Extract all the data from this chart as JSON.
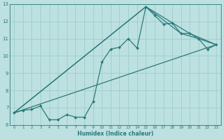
{
  "xlabel": "Humidex (Indice chaleur)",
  "xlim": [
    -0.5,
    23.5
  ],
  "ylim": [
    6,
    13
  ],
  "xticks": [
    0,
    1,
    2,
    3,
    4,
    5,
    6,
    7,
    8,
    9,
    10,
    11,
    12,
    13,
    14,
    15,
    16,
    17,
    18,
    19,
    20,
    21,
    22,
    23
  ],
  "yticks": [
    6,
    7,
    8,
    9,
    10,
    11,
    12,
    13
  ],
  "background_color": "#bde0e0",
  "grid_color": "#9dcece",
  "line_color": "#2a7a7a",
  "series_main": {
    "x": [
      0,
      1,
      2,
      3,
      4,
      5,
      6,
      7,
      8,
      9,
      10,
      11,
      12,
      13,
      14,
      15,
      16,
      17,
      18,
      19,
      20,
      21,
      22,
      23
    ],
    "y": [
      6.7,
      6.85,
      6.9,
      7.1,
      6.3,
      6.3,
      6.6,
      6.45,
      6.45,
      7.35,
      9.65,
      10.4,
      10.5,
      11.0,
      10.45,
      12.85,
      12.35,
      11.85,
      11.9,
      11.3,
      11.3,
      11.0,
      10.4,
      10.65
    ]
  },
  "series_line1": {
    "x": [
      0,
      15,
      19,
      21,
      23
    ],
    "y": [
      6.7,
      12.85,
      11.3,
      11.0,
      10.65
    ]
  },
  "series_line2": {
    "x": [
      0,
      15,
      20,
      23
    ],
    "y": [
      6.7,
      12.85,
      11.3,
      10.65
    ]
  },
  "series_line3": {
    "x": [
      0,
      23
    ],
    "y": [
      6.7,
      10.65
    ]
  }
}
